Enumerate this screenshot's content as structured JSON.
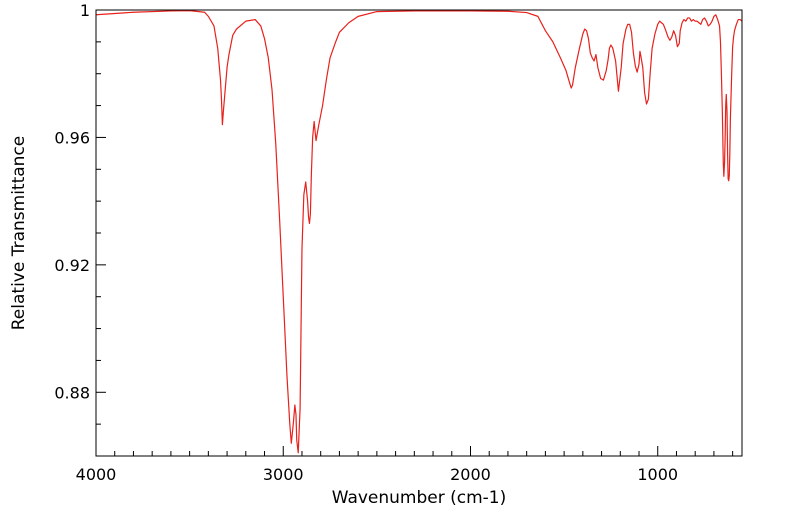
{
  "chart_data": {
    "type": "line",
    "title": "",
    "xlabel": "Wavenumber (cm-1)",
    "ylabel": "Relative Transmittance",
    "xlim": [
      4000,
      550
    ],
    "ylim": [
      0.86,
      1.0
    ],
    "x_reversed": true,
    "x_ticks": [
      4000,
      3000,
      2000,
      1000
    ],
    "x_tick_labels": [
      "4000",
      "3000",
      "2000",
      "1000"
    ],
    "y_ticks": [
      1.0,
      0.96,
      0.92,
      0.88
    ],
    "y_tick_labels": [
      "1",
      "0.96",
      "0.92",
      "0.88"
    ],
    "grid": false,
    "legend": "none",
    "series": [
      {
        "color": "#e8211c",
        "x": [
          4000,
          3800,
          3600,
          3500,
          3420,
          3400,
          3370,
          3350,
          3335,
          3330,
          3325,
          3320,
          3310,
          3300,
          3290,
          3270,
          3250,
          3200,
          3150,
          3120,
          3100,
          3080,
          3060,
          3040,
          3020,
          3000,
          2980,
          2965,
          2957,
          2950,
          2945,
          2938,
          2932,
          2928,
          2920,
          2910,
          2905,
          2900,
          2890,
          2880,
          2870,
          2865,
          2860,
          2855,
          2850,
          2843,
          2835,
          2825,
          2810,
          2790,
          2770,
          2750,
          2720,
          2700,
          2650,
          2600,
          2500,
          2300,
          2000,
          1800,
          1700,
          1640,
          1600,
          1560,
          1520,
          1490,
          1470,
          1462,
          1455,
          1440,
          1420,
          1400,
          1390,
          1380,
          1370,
          1360,
          1350,
          1340,
          1330,
          1320,
          1305,
          1290,
          1275,
          1265,
          1258,
          1250,
          1240,
          1225,
          1210,
          1195,
          1185,
          1170,
          1160,
          1150,
          1140,
          1130,
          1120,
          1110,
          1100,
          1095,
          1090,
          1080,
          1070,
          1060,
          1050,
          1040,
          1030,
          1015,
          1000,
          990,
          980,
          970,
          960,
          945,
          935,
          925,
          915,
          905,
          895,
          885,
          880,
          870,
          860,
          850,
          840,
          830,
          820,
          810,
          800,
          790,
          780,
          770,
          760,
          750,
          740,
          730,
          720,
          710,
          700,
          690,
          680,
          670,
          665,
          660,
          655,
          650,
          647,
          643,
          640,
          637,
          634,
          630,
          627,
          624,
          621,
          618,
          615,
          612,
          608,
          605,
          602,
          600,
          595,
          590,
          580,
          570,
          560,
          550
        ],
        "y": [
          0.9985,
          0.9993,
          0.9997,
          0.9998,
          0.9993,
          0.998,
          0.995,
          0.988,
          0.978,
          0.972,
          0.964,
          0.968,
          0.975,
          0.982,
          0.986,
          0.992,
          0.994,
          0.9965,
          0.997,
          0.995,
          0.991,
          0.985,
          0.975,
          0.958,
          0.935,
          0.91,
          0.885,
          0.87,
          0.864,
          0.868,
          0.871,
          0.876,
          0.873,
          0.865,
          0.861,
          0.875,
          0.9,
          0.925,
          0.942,
          0.946,
          0.94,
          0.935,
          0.933,
          0.936,
          0.948,
          0.96,
          0.965,
          0.959,
          0.964,
          0.97,
          0.978,
          0.985,
          0.99,
          0.993,
          0.996,
          0.998,
          0.9995,
          0.9997,
          0.9997,
          0.9996,
          0.9992,
          0.998,
          0.9935,
          0.99,
          0.985,
          0.981,
          0.977,
          0.9755,
          0.9765,
          0.982,
          0.9875,
          0.9925,
          0.994,
          0.9935,
          0.991,
          0.9865,
          0.985,
          0.984,
          0.986,
          0.982,
          0.9785,
          0.978,
          0.981,
          0.9845,
          0.988,
          0.989,
          0.988,
          0.984,
          0.9745,
          0.982,
          0.9895,
          0.994,
          0.9955,
          0.9955,
          0.993,
          0.9865,
          0.9825,
          0.9805,
          0.983,
          0.987,
          0.9855,
          0.982,
          0.974,
          0.9705,
          0.972,
          0.9805,
          0.988,
          0.9925,
          0.9955,
          0.9965,
          0.996,
          0.9955,
          0.994,
          0.9915,
          0.9905,
          0.9915,
          0.9935,
          0.992,
          0.9885,
          0.9895,
          0.9935,
          0.996,
          0.997,
          0.9965,
          0.9975,
          0.9975,
          0.9965,
          0.997,
          0.9965,
          0.9965,
          0.996,
          0.9955,
          0.997,
          0.9975,
          0.9965,
          0.995,
          0.9955,
          0.9965,
          0.998,
          0.9985,
          0.997,
          0.995,
          0.99,
          0.98,
          0.968,
          0.952,
          0.9478,
          0.9525,
          0.96,
          0.97,
          0.9735,
          0.968,
          0.955,
          0.947,
          0.9464,
          0.948,
          0.955,
          0.966,
          0.974,
          0.98,
          0.985,
          0.9885,
          0.9915,
          0.9935,
          0.9955,
          0.997,
          0.997,
          0.9965
        ]
      }
    ]
  }
}
